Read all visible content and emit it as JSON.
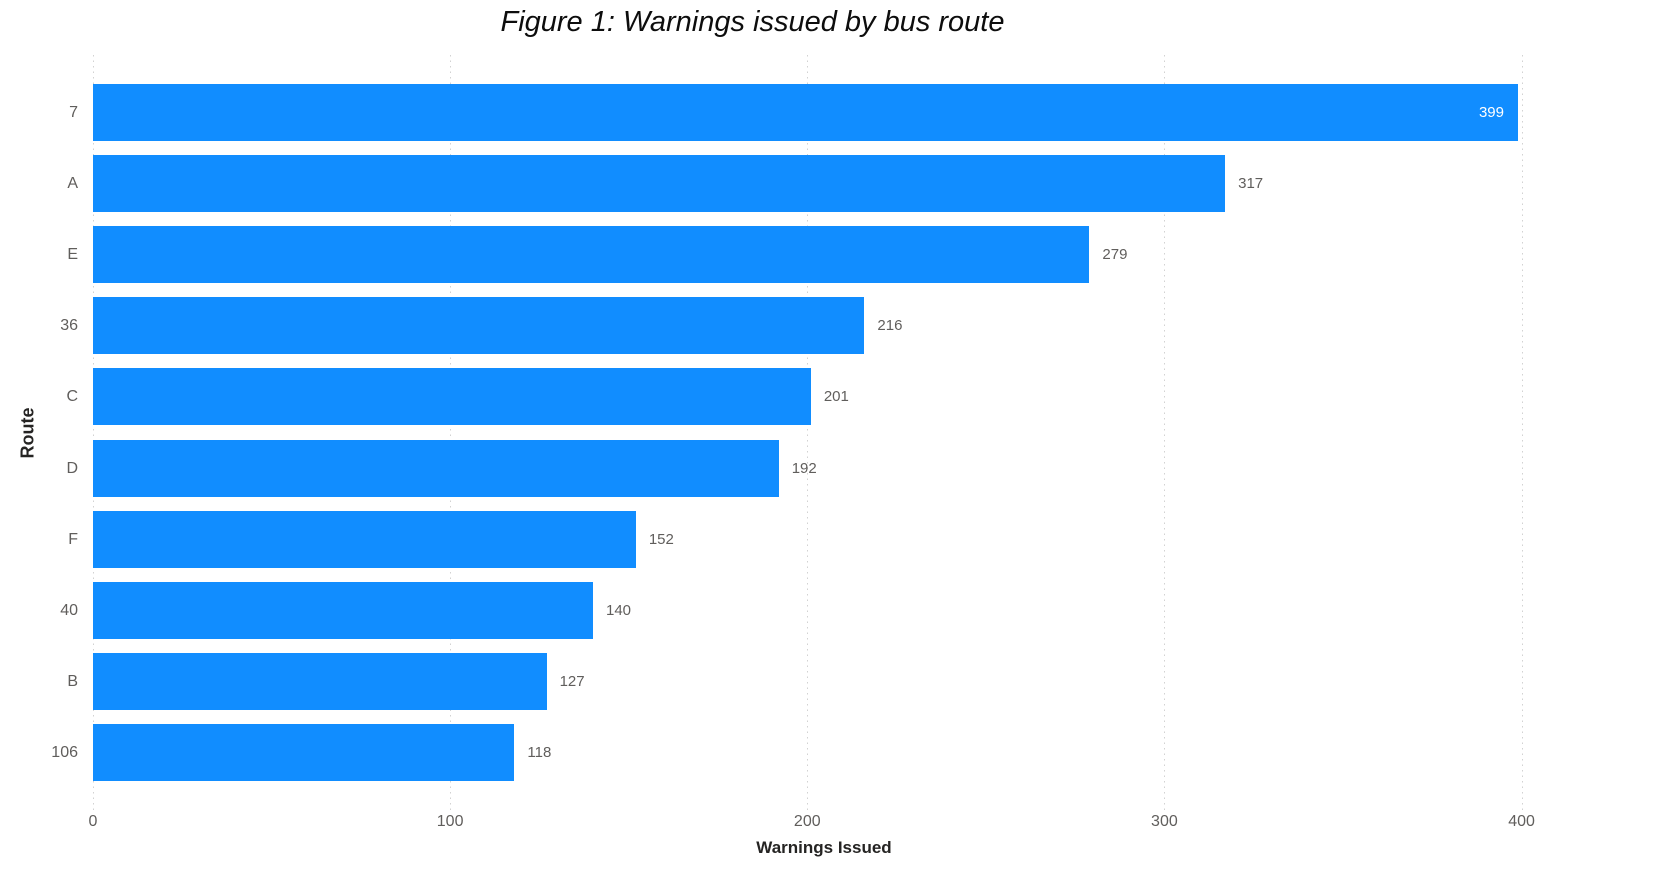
{
  "title": "Figure 1: Warnings issued by bus route",
  "colors": {
    "bar": "#118DFF",
    "value_label_inside": "#FFFFFF",
    "value_label_outside": "#605E5C",
    "axis_tick_text": "#605E5C",
    "category_text": "#605E5C",
    "axis_title_text": "#252423",
    "title_text": "#0D0D0D",
    "gridline": "#D2D2D2",
    "background": "#FFFFFF"
  },
  "chart_data": {
    "type": "bar",
    "orientation": "horizontal",
    "title": "Figure 1: Warnings issued by bus route",
    "categories": [
      "7",
      "A",
      "E",
      "36",
      "C",
      "D",
      "F",
      "40",
      "B",
      "106"
    ],
    "values": [
      399,
      317,
      279,
      216,
      201,
      192,
      152,
      140,
      127,
      118
    ],
    "xlabel": "Warnings Issued",
    "ylabel": "Route",
    "xlim": [
      0,
      400
    ],
    "x_ticks": [
      0,
      100,
      200,
      300,
      400
    ],
    "grid": "vertical dotted gridlines",
    "legend": "none",
    "value_labels": "at end of bar; inside bar in white when bar reaches axis max, otherwise outside in gray",
    "sort_order": "descending by value"
  }
}
